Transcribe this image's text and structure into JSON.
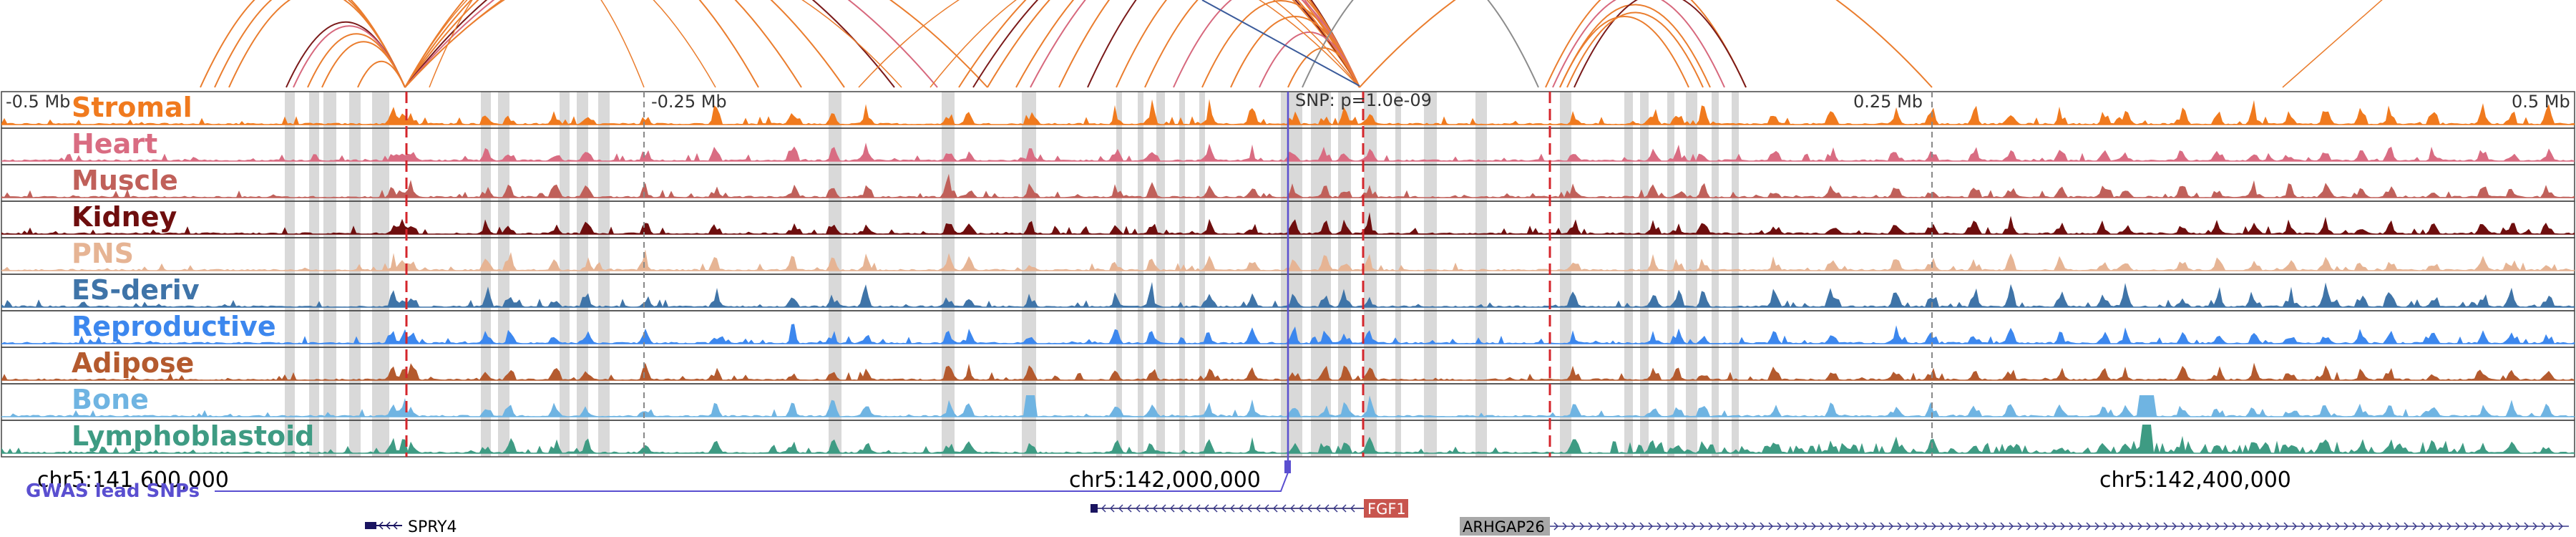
{
  "ruler": {
    "left_label": "-0.5 Mb",
    "mid_left_label": "-0.25 Mb",
    "mid_right_label": "0.25 Mb",
    "right_label": "0.5 Mb",
    "snp_label": "SNP: p=1.0e-09"
  },
  "coordinates": {
    "left": "chr5:141,600,000",
    "mid": "chr5:142,000,000",
    "right": "chr5:142,400,000"
  },
  "gwas_label": "GWAS lead SNPs",
  "tracks": [
    {
      "name": "Stromal",
      "color": "#f07a1e"
    },
    {
      "name": "Heart",
      "color": "#d96c82"
    },
    {
      "name": "Muscle",
      "color": "#c0605a"
    },
    {
      "name": "Kidney",
      "color": "#6e0e0e"
    },
    {
      "name": "PNS",
      "color": "#e6b494"
    },
    {
      "name": "ES-deriv",
      "color": "#3f74a8"
    },
    {
      "name": "Reproductive",
      "color": "#3c87ee"
    },
    {
      "name": "Adipose",
      "color": "#b45a2e"
    },
    {
      "name": "Bone",
      "color": "#6fb4e2"
    },
    {
      "name": "Lymphoblastoid",
      "color": "#3e9b83"
    }
  ],
  "genes": [
    {
      "name": "SPRY4",
      "strand": "minus",
      "label_style": "plain"
    },
    {
      "name": "FGF1",
      "strand": "minus",
      "label_style": "highlight",
      "color": "#c8554e"
    },
    {
      "name": "ARHGAP26",
      "strand": "plus",
      "label_style": "highlight",
      "color": "#a8a8a8"
    }
  ],
  "colors": {
    "arc_primary": "#ea7d2e",
    "arc_dark": "#7a1a1a",
    "arc_pink": "#d7687d",
    "arc_gray": "#8c8c8c",
    "snp_line": "#5a4fd0",
    "significant_line": "#d4262c",
    "highlight_band": "#d9d9d9"
  }
}
